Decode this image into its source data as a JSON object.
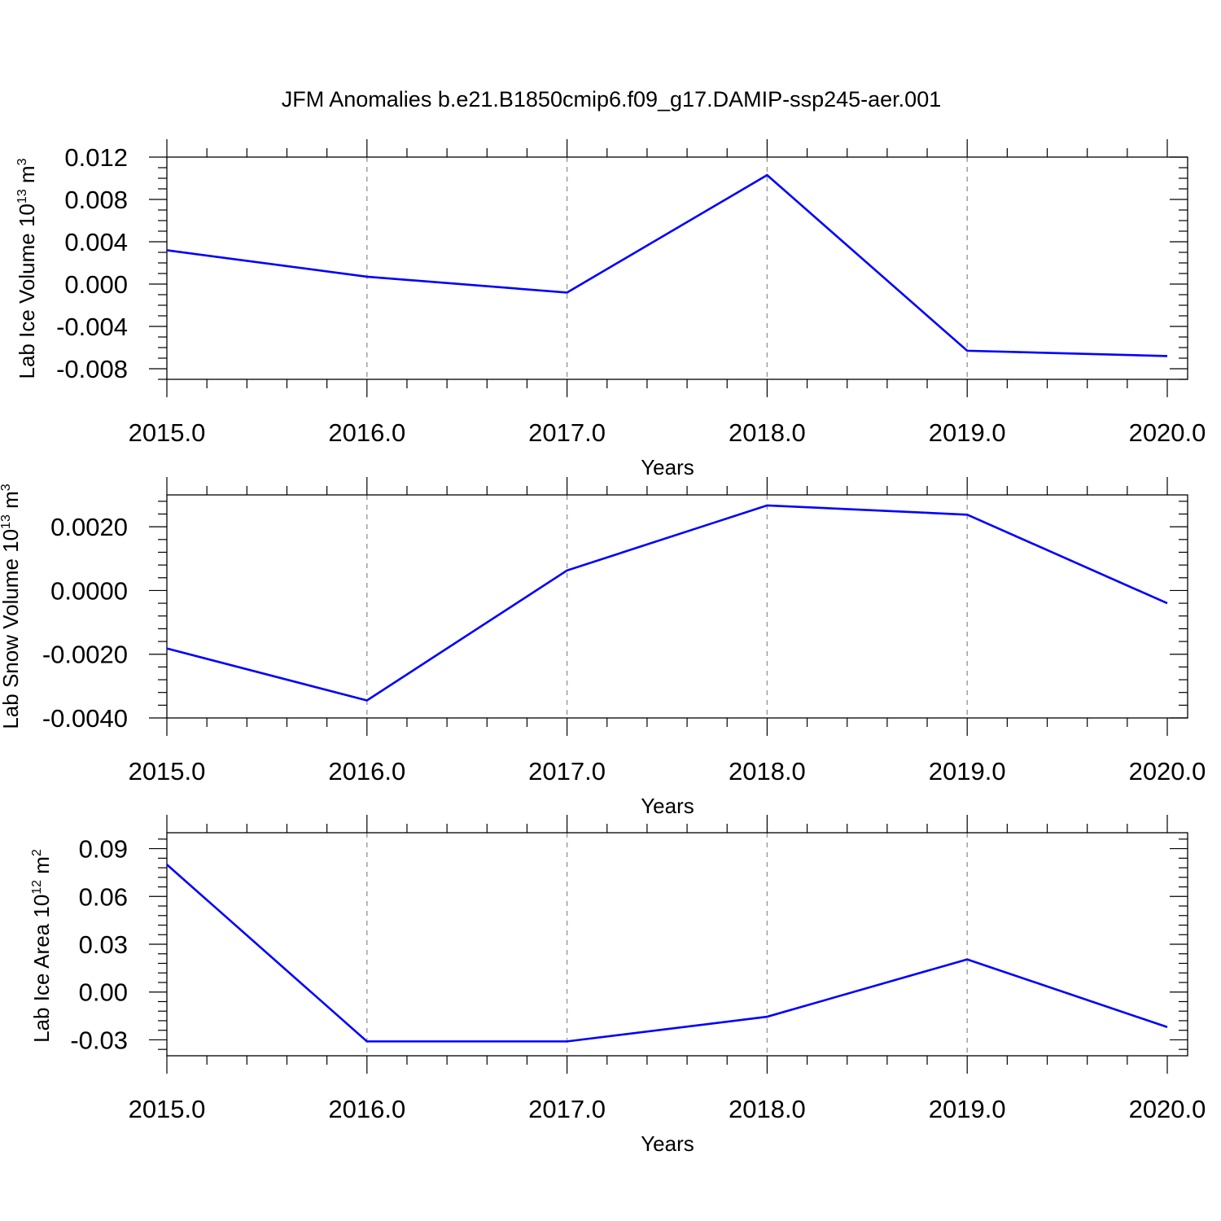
{
  "figure_title": "JFM Anomalies b.e21.B1850cmip6.f09_g17.DAMIP-ssp245-aer.001",
  "colors": {
    "series": "#0000ff",
    "frame": "#000000",
    "grid": "#999999"
  },
  "chart_data": [
    {
      "type": "line",
      "ylabel": {
        "text": "Lab Ice Volume 10",
        "exp": "13",
        "unit": " m",
        "unit_exp": "3"
      },
      "xlabel": "Years",
      "x": [
        2015,
        2016,
        2017,
        2018,
        2019,
        2020
      ],
      "x_tick_labels": [
        "2015.0",
        "2016.0",
        "2017.0",
        "2018.0",
        "2019.0",
        "2020.0"
      ],
      "xlim": [
        2015,
        2020
      ],
      "y_ticks": [
        0.012,
        0.008,
        0.004,
        0.0,
        -0.004,
        -0.008
      ],
      "y_tick_labels": [
        "0.012",
        "0.008",
        "0.004",
        "0.000",
        "-0.004",
        "-0.008"
      ],
      "ylim": [
        -0.009,
        0.012
      ],
      "grid": "vertical dashed at major x ticks",
      "series": [
        {
          "values": [
            0.0032,
            0.0007,
            -0.0008,
            0.0103,
            -0.0063,
            -0.0068
          ]
        }
      ]
    },
    {
      "type": "line",
      "ylabel": {
        "text": "Lab Snow Volume 10",
        "exp": "13",
        "unit": " m",
        "unit_exp": "3"
      },
      "xlabel": "Years",
      "x": [
        2015,
        2016,
        2017,
        2018,
        2019,
        2020
      ],
      "x_tick_labels": [
        "2015.0",
        "2016.0",
        "2017.0",
        "2018.0",
        "2019.0",
        "2020.0"
      ],
      "xlim": [
        2015,
        2020
      ],
      "y_ticks": [
        0.002,
        0.0,
        -0.002,
        -0.004
      ],
      "y_tick_labels": [
        "0.0020",
        "0.0000",
        "-0.0020",
        "-0.0040"
      ],
      "ylim": [
        -0.004,
        0.003
      ],
      "grid": "vertical dashed at major x ticks",
      "series": [
        {
          "values": [
            -0.00182,
            -0.00345,
            0.00063,
            0.00267,
            0.00238,
            -0.0004
          ]
        }
      ]
    },
    {
      "type": "line",
      "ylabel": {
        "text": "Lab Ice Area 10",
        "exp": "12",
        "unit": " m",
        "unit_exp": "2"
      },
      "xlabel": "Years",
      "x": [
        2015,
        2016,
        2017,
        2018,
        2019,
        2020
      ],
      "x_tick_labels": [
        "2015.0",
        "2016.0",
        "2017.0",
        "2018.0",
        "2019.0",
        "2020.0"
      ],
      "xlim": [
        2015,
        2020
      ],
      "y_ticks": [
        0.09,
        0.06,
        0.03,
        0.0,
        -0.03
      ],
      "y_tick_labels": [
        "0.09",
        "0.06",
        "0.03",
        "0.00",
        "-0.03"
      ],
      "ylim": [
        -0.04,
        0.1
      ],
      "grid": "vertical dashed at major x ticks",
      "series": [
        {
          "values": [
            0.08,
            -0.031,
            -0.031,
            -0.0155,
            0.0205,
            -0.022
          ]
        }
      ]
    }
  ]
}
